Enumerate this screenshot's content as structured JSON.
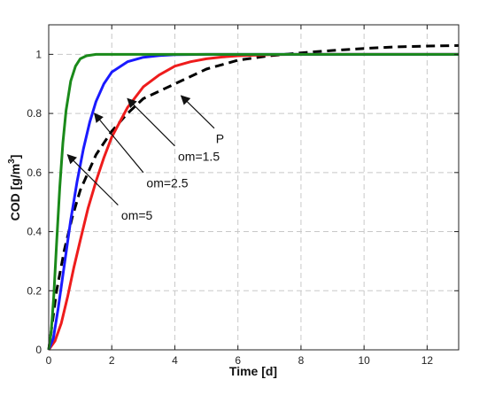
{
  "chart_data": {
    "type": "line",
    "title": "",
    "xlabel": "Time [d]",
    "ylabel_parts": {
      "main": "COD [g/m",
      "sup": "3",
      "end": "]"
    },
    "xlim": [
      0,
      13
    ],
    "ylim": [
      0,
      1.1
    ],
    "xticks": [
      "0",
      "2",
      "4",
      "6",
      "8",
      "10",
      "12"
    ],
    "yticks": [
      "0",
      "0.2",
      "0.4",
      "0.6",
      "0.8",
      "1"
    ],
    "grid": true,
    "colors": {
      "om5": "#1a8a1a",
      "om25": "#1a1aff",
      "om15": "#ee1c1c",
      "P": "#000000"
    },
    "series": [
      {
        "color": "#ee1c1c",
        "style": "solid",
        "points": [
          [
            0,
            0
          ],
          [
            0.2,
            0.03
          ],
          [
            0.4,
            0.09
          ],
          [
            0.6,
            0.18
          ],
          [
            0.8,
            0.28
          ],
          [
            1,
            0.37
          ],
          [
            1.25,
            0.48
          ],
          [
            1.5,
            0.57
          ],
          [
            1.75,
            0.65
          ],
          [
            2,
            0.72
          ],
          [
            2.5,
            0.82
          ],
          [
            3,
            0.89
          ],
          [
            3.5,
            0.93
          ],
          [
            4,
            0.96
          ],
          [
            4.5,
            0.975
          ],
          [
            5,
            0.985
          ],
          [
            5.5,
            0.991
          ],
          [
            6,
            0.995
          ],
          [
            7,
            0.999
          ],
          [
            8,
            1.0
          ],
          [
            13,
            1.0
          ]
        ]
      },
      {
        "color": "#1a1aff",
        "style": "solid",
        "points": [
          [
            0,
            0
          ],
          [
            0.15,
            0.04
          ],
          [
            0.3,
            0.14
          ],
          [
            0.5,
            0.29
          ],
          [
            0.7,
            0.44
          ],
          [
            0.9,
            0.57
          ],
          [
            1.1,
            0.68
          ],
          [
            1.3,
            0.77
          ],
          [
            1.5,
            0.84
          ],
          [
            1.75,
            0.9
          ],
          [
            2,
            0.94
          ],
          [
            2.5,
            0.975
          ],
          [
            3,
            0.99
          ],
          [
            3.5,
            0.996
          ],
          [
            4,
            0.999
          ],
          [
            5,
            1.0
          ],
          [
            13,
            1.0
          ]
        ]
      },
      {
        "color": "#1a8a1a",
        "style": "solid",
        "points": [
          [
            0,
            0
          ],
          [
            0.08,
            0.06
          ],
          [
            0.16,
            0.18
          ],
          [
            0.25,
            0.36
          ],
          [
            0.35,
            0.55
          ],
          [
            0.45,
            0.7
          ],
          [
            0.55,
            0.81
          ],
          [
            0.7,
            0.91
          ],
          [
            0.85,
            0.96
          ],
          [
            1,
            0.985
          ],
          [
            1.2,
            0.995
          ],
          [
            1.5,
            1.0
          ],
          [
            13,
            1.0
          ]
        ]
      },
      {
        "color": "#000000",
        "style": "dashed",
        "points": [
          [
            0,
            0
          ],
          [
            0.1,
            0.08
          ],
          [
            0.25,
            0.2
          ],
          [
            0.5,
            0.34
          ],
          [
            0.75,
            0.45
          ],
          [
            1,
            0.54
          ],
          [
            1.5,
            0.66
          ],
          [
            2,
            0.74
          ],
          [
            2.5,
            0.8
          ],
          [
            3,
            0.85
          ],
          [
            4,
            0.9
          ],
          [
            5,
            0.95
          ],
          [
            6,
            0.98
          ],
          [
            7,
            0.995
          ],
          [
            8,
            1.005
          ],
          [
            9,
            1.013
          ],
          [
            10,
            1.02
          ],
          [
            11,
            1.025
          ],
          [
            12,
            1.028
          ],
          [
            13,
            1.03
          ]
        ]
      }
    ],
    "annotations": [
      {
        "label": "om=5",
        "text_at": [
          2.3,
          0.44
        ],
        "arrow_from": [
          2.2,
          0.49
        ],
        "arrow_to": [
          0.6,
          0.66
        ]
      },
      {
        "label": "om=2.5",
        "text_at": [
          3.1,
          0.55
        ],
        "arrow_from": [
          3.0,
          0.6
        ],
        "arrow_to": [
          1.45,
          0.8
        ]
      },
      {
        "label": "om=1.5",
        "text_at": [
          4.1,
          0.64
        ],
        "arrow_from": [
          4.0,
          0.69
        ],
        "arrow_to": [
          2.5,
          0.85
        ]
      },
      {
        "label": "P",
        "text_at": [
          5.3,
          0.7
        ],
        "arrow_from": [
          5.25,
          0.75
        ],
        "arrow_to": [
          4.2,
          0.86
        ]
      }
    ]
  }
}
